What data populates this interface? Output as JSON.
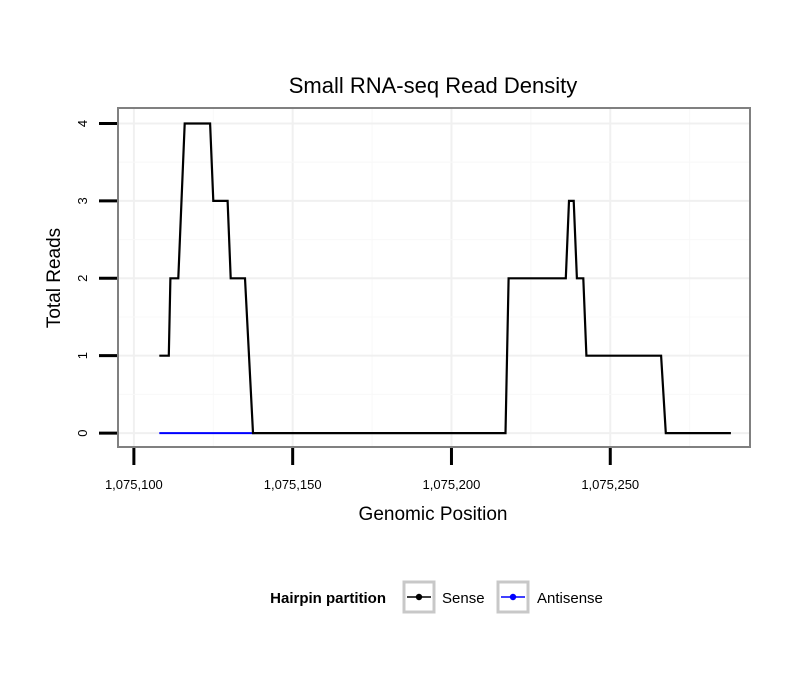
{
  "chart_data": {
    "type": "line",
    "title": "Small RNA-seq Read Density",
    "xlabel": "Genomic Position",
    "ylabel": "Total Reads",
    "xlim": [
      1075095,
      1075294
    ],
    "ylim": [
      -0.18,
      4.2
    ],
    "x_ticks": [
      1075100,
      1075150,
      1075200,
      1075250
    ],
    "x_tick_labels": [
      "1,075,100",
      "1,075,150",
      "1,075,200",
      "1,075,250"
    ],
    "y_ticks": [
      0,
      1,
      2,
      3,
      4
    ],
    "y_tick_labels": [
      "0",
      "1",
      "2",
      "3",
      "4"
    ],
    "grid": true,
    "legend": {
      "title": "Hairpin partition",
      "position": "bottom"
    },
    "series": [
      {
        "name": "Sense",
        "color": "#000000",
        "points": [
          [
            1075108,
            1
          ],
          [
            1075111,
            1
          ],
          [
            1075111.5,
            2
          ],
          [
            1075114,
            2
          ],
          [
            1075116,
            4
          ],
          [
            1075124,
            4
          ],
          [
            1075125,
            3
          ],
          [
            1075129.5,
            3
          ],
          [
            1075130.5,
            2
          ],
          [
            1075135,
            2
          ],
          [
            1075137.5,
            0
          ],
          [
            1075217,
            0
          ],
          [
            1075218,
            2
          ],
          [
            1075236,
            2
          ],
          [
            1075237,
            3
          ],
          [
            1075238.5,
            3
          ],
          [
            1075239.5,
            2
          ],
          [
            1075241.5,
            2
          ],
          [
            1075242.5,
            1
          ],
          [
            1075266,
            1
          ],
          [
            1075267.5,
            0
          ],
          [
            1075288,
            0
          ]
        ]
      },
      {
        "name": "Antisense",
        "color": "#0000ff",
        "points": [
          [
            1075108,
            0
          ],
          [
            1075138,
            0
          ]
        ]
      }
    ]
  }
}
